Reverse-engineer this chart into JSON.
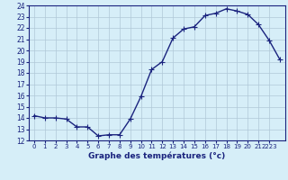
{
  "hours": [
    0,
    1,
    2,
    3,
    4,
    5,
    6,
    7,
    8,
    9,
    10,
    11,
    12,
    13,
    14,
    15,
    16,
    17,
    18,
    19,
    20,
    21,
    22,
    23
  ],
  "temps": [
    14.2,
    14.0,
    14.0,
    13.9,
    13.2,
    13.2,
    12.4,
    12.5,
    12.5,
    13.9,
    15.9,
    18.3,
    19.0,
    21.1,
    21.9,
    22.1,
    23.1,
    23.3,
    23.7,
    23.5,
    23.2,
    22.3,
    20.9,
    19.2
  ],
  "line_color": "#1a237e",
  "marker": "+",
  "marker_size": 4,
  "background_color": "#d6eef8",
  "grid_color": "#b0c8d8",
  "xlabel": "Graphe des températures (°c)",
  "xlabel_color": "#1a237e",
  "tick_color": "#1a237e",
  "ylim": [
    12,
    24
  ],
  "xlim": [
    -0.5,
    23.5
  ],
  "yticks": [
    12,
    13,
    14,
    15,
    16,
    17,
    18,
    19,
    20,
    21,
    22,
    23,
    24
  ],
  "xtick_positions": [
    0,
    1,
    2,
    3,
    4,
    5,
    6,
    7,
    8,
    9,
    10,
    11,
    12,
    13,
    14,
    15,
    16,
    17,
    18,
    19,
    20,
    21,
    22
  ],
  "xtick_labels": [
    "0",
    "1",
    "2",
    "3",
    "4",
    "5",
    "6",
    "7",
    "8",
    "9",
    "10",
    "11",
    "12",
    "13",
    "14",
    "15",
    "16",
    "17",
    "18",
    "19",
    "20",
    "21",
    "2223"
  ]
}
